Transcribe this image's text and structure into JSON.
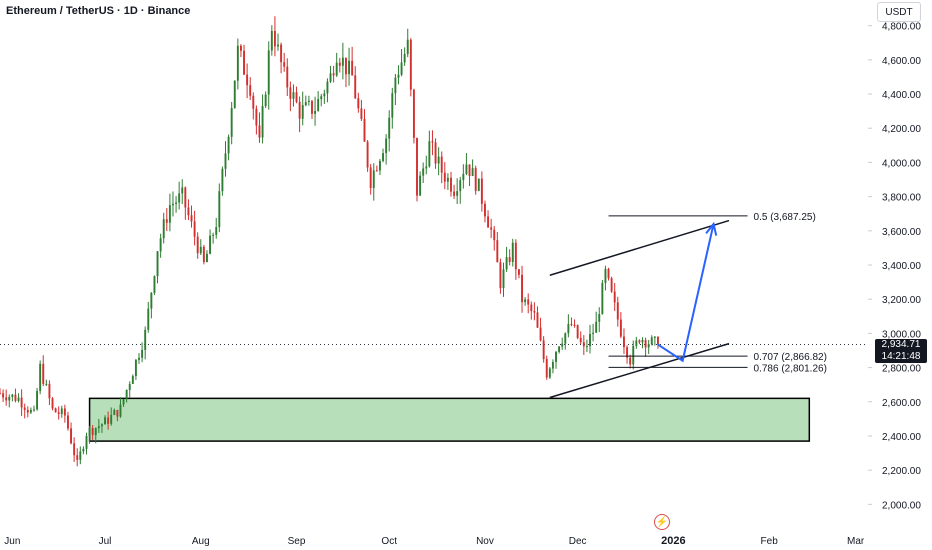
{
  "header": {
    "title": "Ethereum / TetherUS · 1D · Binance",
    "unit_label": "USDT"
  },
  "price_tag": {
    "price": "2,934.71",
    "countdown": "14:21:48"
  },
  "colors": {
    "up": "#26a69a",
    "down": "#ef5350",
    "up_fill": "#2e7d32",
    "down_fill": "#d32f2f",
    "zone_fill": "#b7dfb9",
    "arrow": "#2962ff",
    "line": "#131722",
    "axis_text": "#131722"
  },
  "chart_data": {
    "type": "candlestick",
    "title": "Ethereum / TetherUS · 1D · Binance",
    "y_unit": "USDT",
    "ylim": [
      1850,
      4950
    ],
    "x_range": [
      "2025-05-28",
      "2026-03-05"
    ],
    "y_ticks": [
      2000,
      2200,
      2400,
      2600,
      2800,
      3000,
      3200,
      3400,
      3600,
      3800,
      4000,
      4200,
      4400,
      4600,
      4800
    ],
    "y_tick_labels": [
      "2,000.00",
      "2,200.00",
      "2,400.00",
      "2,600.00",
      "2,800.00",
      "3,000.00",
      "3,200.00",
      "3,400.00",
      "3,600.00",
      "3,800.00",
      "4,000.00",
      "4,200.00",
      "4,400.00",
      "4,600.00",
      "4,800.00"
    ],
    "x_ticks": [
      {
        "label": "Jun",
        "date": "2025-06-01",
        "bold": false
      },
      {
        "label": "Jul",
        "date": "2025-07-01",
        "bold": false
      },
      {
        "label": "Aug",
        "date": "2025-08-01",
        "bold": false
      },
      {
        "label": "Sep",
        "date": "2025-09-01",
        "bold": false
      },
      {
        "label": "Oct",
        "date": "2025-10-01",
        "bold": false
      },
      {
        "label": "Nov",
        "date": "2025-11-01",
        "bold": false
      },
      {
        "label": "Dec",
        "date": "2025-12-01",
        "bold": false
      },
      {
        "label": "2026",
        "date": "2026-01-01",
        "bold": true
      },
      {
        "label": "Feb",
        "date": "2026-02-01",
        "bold": false
      },
      {
        "label": "Mar",
        "date": "2026-03-01",
        "bold": false
      }
    ],
    "current_price": 2934.71,
    "price_path": [
      [
        "2025-05-28",
        2650
      ],
      [
        "2025-06-03",
        2620
      ],
      [
        "2025-06-08",
        2520
      ],
      [
        "2025-06-10",
        2800
      ],
      [
        "2025-06-14",
        2550
      ],
      [
        "2025-06-18",
        2520
      ],
      [
        "2025-06-22",
        2230
      ],
      [
        "2025-06-25",
        2420
      ],
      [
        "2025-07-01",
        2480
      ],
      [
        "2025-07-06",
        2560
      ],
      [
        "2025-07-10",
        2780
      ],
      [
        "2025-07-14",
        3000
      ],
      [
        "2025-07-18",
        3500
      ],
      [
        "2025-07-22",
        3750
      ],
      [
        "2025-07-26",
        3800
      ],
      [
        "2025-08-02",
        3400
      ],
      [
        "2025-08-06",
        3650
      ],
      [
        "2025-08-10",
        4200
      ],
      [
        "2025-08-13",
        4650
      ],
      [
        "2025-08-17",
        4450
      ],
      [
        "2025-08-20",
        4100
      ],
      [
        "2025-08-24",
        4800
      ],
      [
        "2025-08-28",
        4500
      ],
      [
        "2025-09-02",
        4300
      ],
      [
        "2025-09-07",
        4320
      ],
      [
        "2025-09-12",
        4500
      ],
      [
        "2025-09-14",
        4650
      ],
      [
        "2025-09-19",
        4500
      ],
      [
        "2025-09-22",
        4200
      ],
      [
        "2025-09-25",
        3900
      ],
      [
        "2025-09-30",
        4150
      ],
      [
        "2025-10-03",
        4500
      ],
      [
        "2025-10-07",
        4680
      ],
      [
        "2025-10-10",
        3830
      ],
      [
        "2025-10-14",
        4100
      ],
      [
        "2025-10-18",
        3950
      ],
      [
        "2025-10-22",
        3850
      ],
      [
        "2025-10-26",
        4000
      ],
      [
        "2025-10-30",
        3850
      ],
      [
        "2025-11-03",
        3600
      ],
      [
        "2025-11-06",
        3300
      ],
      [
        "2025-11-10",
        3500
      ],
      [
        "2025-11-13",
        3200
      ],
      [
        "2025-11-17",
        3100
      ],
      [
        "2025-11-21",
        2770
      ],
      [
        "2025-11-25",
        2950
      ],
      [
        "2025-11-29",
        3050
      ],
      [
        "2025-12-03",
        2900
      ],
      [
        "2025-12-07",
        3050
      ],
      [
        "2025-12-10",
        3350
      ],
      [
        "2025-12-13",
        3150
      ],
      [
        "2025-12-16",
        2950
      ],
      [
        "2025-12-18",
        2850
      ],
      [
        "2025-12-21",
        2980
      ],
      [
        "2025-12-24",
        2950
      ],
      [
        "2025-12-27",
        2934.71
      ]
    ],
    "demand_zone": {
      "x_start": "2025-06-26",
      "x_end": "2026-02-14",
      "y_low": 2370,
      "y_high": 2620
    },
    "channel_upper": {
      "from": [
        "2025-11-22",
        3340
      ],
      "to": [
        "2026-01-19",
        3660
      ]
    },
    "channel_lower": {
      "from": [
        "2025-11-22",
        2625
      ],
      "to": [
        "2026-01-19",
        2940
      ]
    },
    "fib_levels": [
      {
        "label": "0.5 (3,687.25)",
        "value": 3687.25,
        "x_start": "2025-12-11",
        "x_end": "2026-01-25"
      },
      {
        "label": "0.707 (2,866.82)",
        "value": 2866.82,
        "x_start": "2025-12-11",
        "x_end": "2026-01-25"
      },
      {
        "label": "0.786 (2,801.26)",
        "value": 2801.26,
        "x_start": "2025-12-11",
        "x_end": "2026-01-25"
      }
    ],
    "projection_arrow": [
      [
        "2025-12-27",
        2934.71
      ],
      [
        "2026-01-04",
        2840
      ],
      [
        "2026-01-14",
        3640
      ]
    ]
  }
}
